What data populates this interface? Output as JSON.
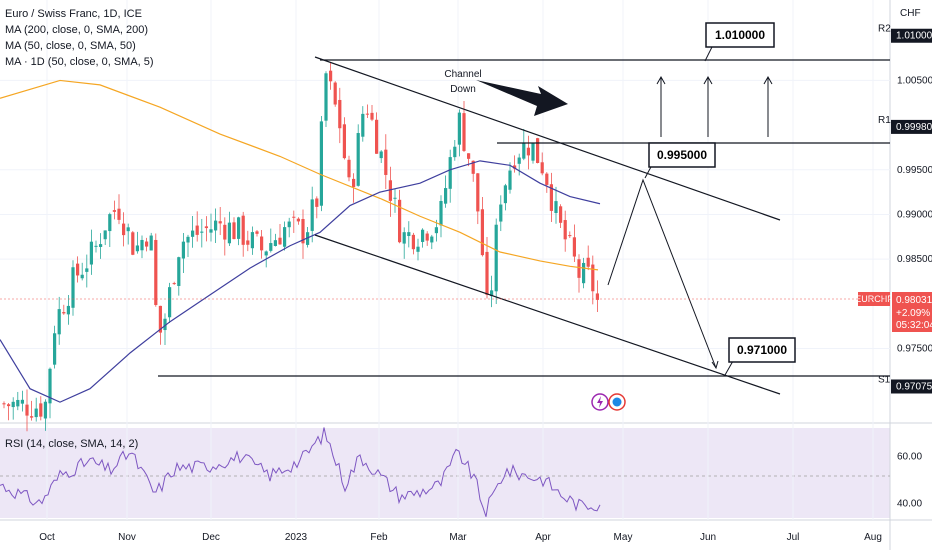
{
  "legend": {
    "symbol": "Euro / Swiss Franc, 1D, ICE",
    "ma200": "MA (200, close, 0, SMA, 200)",
    "ma50": "MA (50, close, 0, SMA, 50)",
    "ma1d": "MA · 1D (50, close, 0, SMA, 5)",
    "rsi": "RSI (14, close, SMA, 14, 2)"
  },
  "price_axis": {
    "currency": "CHF",
    "ticks": [
      "1.005000",
      "0.995000",
      "0.990000",
      "0.985000",
      "0.975000"
    ],
    "level_labels": [
      {
        "name": "R2",
        "value": "1.010000"
      },
      {
        "name": "R1",
        "value": "0.999800"
      },
      {
        "name": "S1",
        "value": "0.970750"
      }
    ],
    "last": {
      "symbol": "EURCHF",
      "price": "0.980310",
      "change": "+2.09%",
      "countdown": "05:32:04"
    }
  },
  "rsi_axis": {
    "ticks": [
      "60.00",
      "40.00"
    ]
  },
  "time_axis": {
    "labels": [
      "Oct",
      "Nov",
      "Dec",
      "2023",
      "Feb",
      "Mar",
      "Apr",
      "May",
      "Jun",
      "Jul",
      "Aug"
    ]
  },
  "annotations": {
    "channel_label": "Channel Down",
    "targets": [
      "1.010000",
      "0.995000",
      "0.971000"
    ]
  },
  "colors": {
    "up": "#26a69a",
    "down": "#ef5350",
    "ma200": "#f5a623",
    "ma50": "#3f3f9e",
    "rsi": "#7e57c2",
    "rsi_band": "#ede7f6"
  },
  "chart_data": {
    "type": "candlestick",
    "series": [
      {
        "name": "MA (200, close, 0, SMA, 200)",
        "color": "#f5a623"
      },
      {
        "name": "MA (50, close, 0, SMA, 50)",
        "color": "#3f3f9e"
      },
      {
        "name": "RSI (14, close, SMA, 14, 2)",
        "color": "#7e57c2"
      }
    ],
    "levels": {
      "R2": 1.01,
      "R1": 0.9998,
      "S1": 0.97075
    },
    "last_price": 0.98031,
    "change_pct": 2.09,
    "ylim": [
      0.967,
      1.014
    ],
    "rsi_ylim": [
      33,
      72
    ],
    "projection": [
      0.995,
      1.01,
      0.971
    ]
  }
}
